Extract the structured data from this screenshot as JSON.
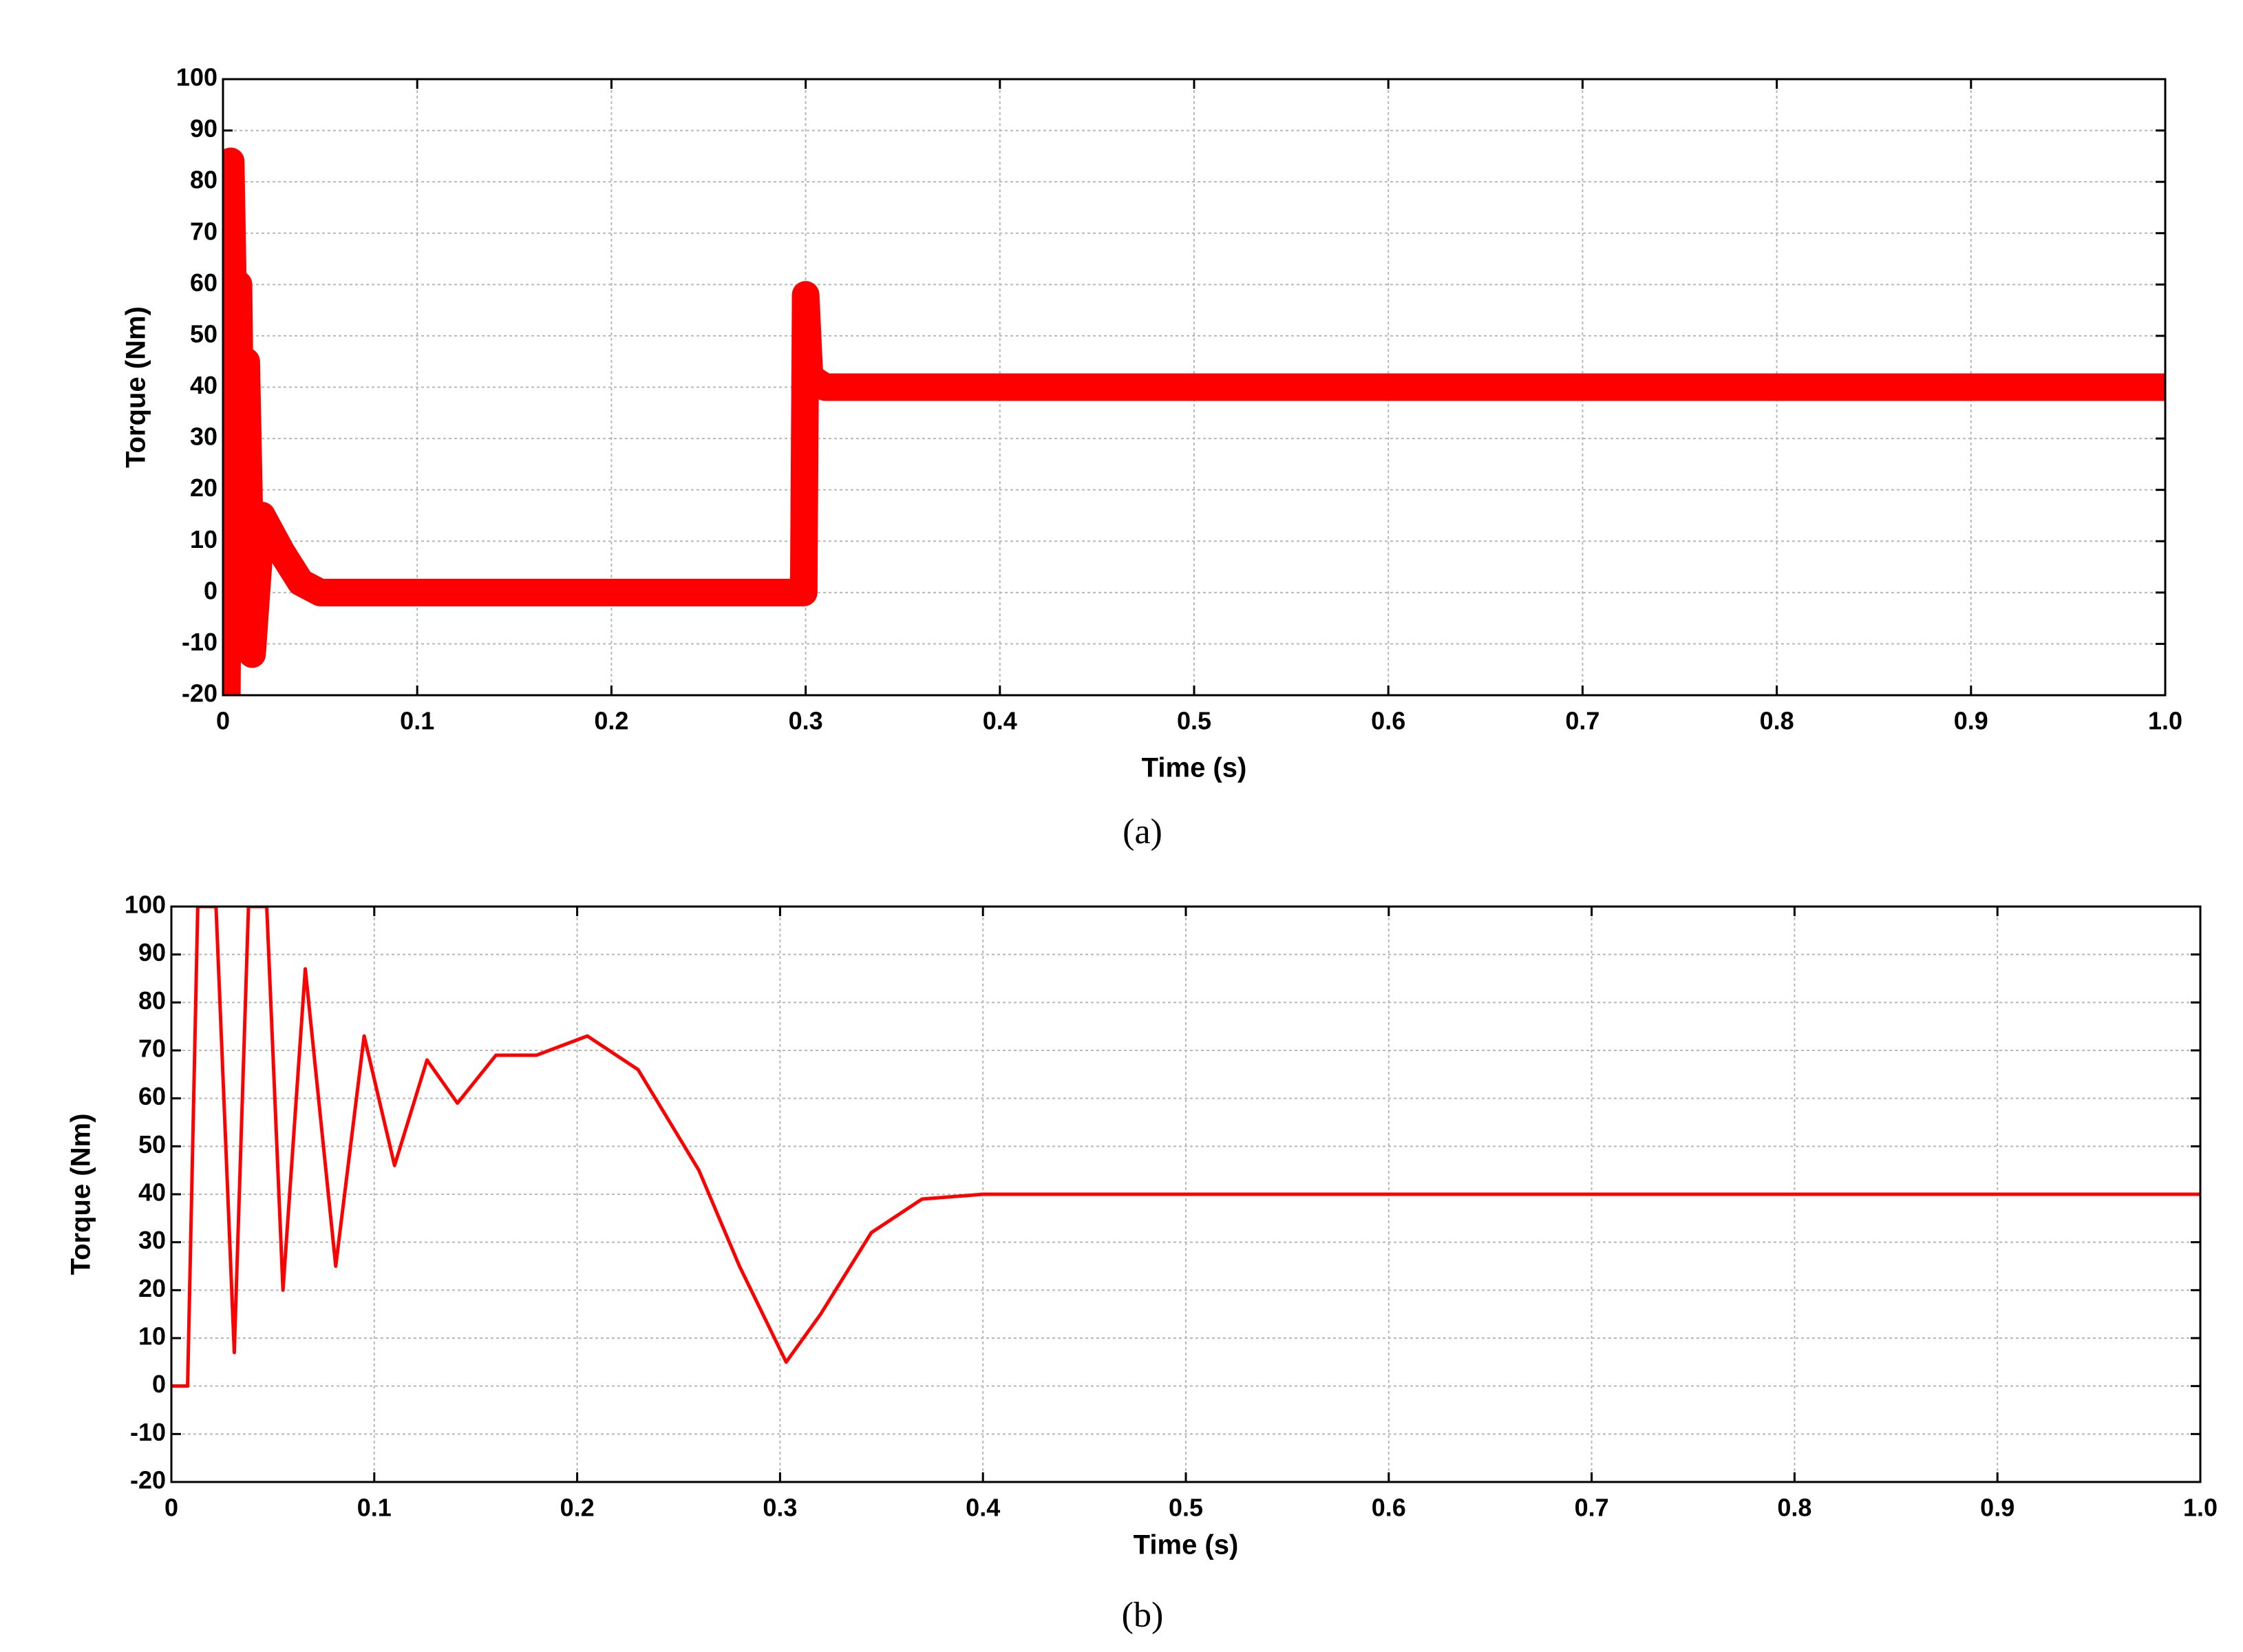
{
  "chart_data": [
    {
      "type": "line",
      "caption": "(a)",
      "x_label": "Time (s)",
      "y_label": "Torque (Nm)",
      "xlim": [
        0,
        1
      ],
      "ylim": [
        -20,
        100
      ],
      "xticks": [
        0,
        0.1,
        0.2,
        0.3,
        0.4,
        0.5,
        0.6,
        0.7,
        0.8,
        0.9,
        {
          "value": 1,
          "label": "1.0"
        }
      ],
      "yticks": [
        -20,
        -10,
        0,
        10,
        20,
        30,
        40,
        50,
        60,
        70,
        80,
        90,
        100
      ],
      "grid": true,
      "series": [
        {
          "color": "#ff0000",
          "x": [
            0,
            0.002,
            0.004,
            0.006,
            0.008,
            0.01,
            0.012,
            0.015,
            0.02,
            0.03,
            0.04,
            0.05,
            0.1,
            0.2,
            0.299,
            0.3,
            0.302,
            0.31,
            0.4,
            0.5,
            0.6,
            0.7,
            0.8,
            0.9,
            1
          ],
          "values": [
            0,
            -20,
            84,
            40,
            60,
            -5,
            45,
            -12,
            15,
            8,
            2,
            0,
            0,
            0,
            0,
            58,
            42,
            40,
            40,
            40,
            40,
            40,
            40,
            40,
            40
          ]
        }
      ]
    },
    {
      "type": "line",
      "caption": "(b)",
      "x_label": "Time (s)",
      "y_label": "Torque (Nm)",
      "xlim": [
        0,
        1
      ],
      "ylim": [
        -20,
        100
      ],
      "xticks": [
        0,
        0.1,
        0.2,
        0.3,
        0.4,
        0.5,
        0.6,
        0.7,
        0.8,
        0.9,
        {
          "value": 1,
          "label": "1.0"
        }
      ],
      "yticks": [
        -20,
        -10,
        0,
        10,
        20,
        30,
        40,
        50,
        60,
        70,
        80,
        90,
        100
      ],
      "grid": true,
      "series": [
        {
          "color": "#ff0000",
          "x": [
            0,
            0.008,
            0.013,
            0.022,
            0.031,
            0.038,
            0.047,
            0.055,
            0.066,
            0.081,
            0.095,
            0.11,
            0.126,
            0.141,
            0.16,
            0.18,
            0.205,
            0.23,
            0.26,
            0.28,
            0.303,
            0.32,
            0.345,
            0.37,
            0.4,
            0.5,
            0.6,
            0.7,
            0.8,
            0.9,
            1
          ],
          "values": [
            0,
            0,
            100,
            100,
            7,
            100,
            100,
            20,
            87,
            25,
            73,
            46,
            68,
            59,
            69,
            69,
            73,
            66,
            45,
            25,
            5,
            15,
            32,
            39,
            40,
            40,
            40,
            40,
            40,
            40,
            40
          ]
        }
      ]
    }
  ]
}
